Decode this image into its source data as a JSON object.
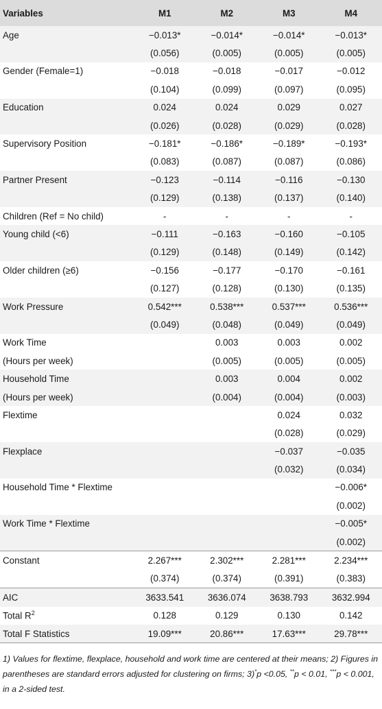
{
  "table": {
    "headers": [
      "Variables",
      "M1",
      "M2",
      "M3",
      "M4"
    ],
    "rows": [
      {
        "label": "Age",
        "cells": [
          "−0.013*",
          "−0.014*",
          "−0.014*",
          "−0.013*"
        ],
        "stripe": true
      },
      {
        "label": "",
        "cells": [
          "(0.056)",
          "(0.005)",
          "(0.005)",
          "(0.005)"
        ],
        "stripe": true
      },
      {
        "label": "Gender (Female=1)",
        "cells": [
          "−0.018",
          "−0.018",
          "−0.017",
          "−0.012"
        ],
        "stripe": false
      },
      {
        "label": "",
        "cells": [
          "(0.104)",
          "(0.099)",
          "(0.097)",
          "(0.095)"
        ],
        "stripe": false
      },
      {
        "label": "Education",
        "cells": [
          "0.024",
          "0.024",
          "0.029",
          "0.027"
        ],
        "stripe": true
      },
      {
        "label": "",
        "cells": [
          "(0.026)",
          "(0.028)",
          "(0.029)",
          "(0.028)"
        ],
        "stripe": true
      },
      {
        "label": "Supervisory Position",
        "cells": [
          "−0.181*",
          "−0.186*",
          "−0.189*",
          "−0.193*"
        ],
        "stripe": false
      },
      {
        "label": "",
        "cells": [
          "(0.083)",
          "(0.087)",
          "(0.087)",
          "(0.086)"
        ],
        "stripe": false
      },
      {
        "label": "Partner Present",
        "cells": [
          "−0.123",
          "−0.114",
          "−0.116",
          "−0.130"
        ],
        "stripe": true
      },
      {
        "label": "",
        "cells": [
          "(0.129)",
          "(0.138)",
          "(0.137)",
          "(0.140)"
        ],
        "stripe": true
      },
      {
        "label": "Children (Ref = No child)",
        "cells": [
          "-",
          "-",
          "-",
          "-"
        ],
        "stripe": false
      },
      {
        "label": "Young child (<6)",
        "cells": [
          "−0.111",
          "−0.163",
          "−0.160",
          "−0.105"
        ],
        "stripe": true
      },
      {
        "label": "",
        "cells": [
          "(0.129)",
          "(0.148)",
          "(0.149)",
          "(0.142)"
        ],
        "stripe": true
      },
      {
        "label": "Older children (≥6)",
        "cells": [
          "−0.156",
          "−0.177",
          "−0.170",
          "−0.161"
        ],
        "stripe": false
      },
      {
        "label": "",
        "cells": [
          "(0.127)",
          "(0.128)",
          "(0.130)",
          "(0.135)"
        ],
        "stripe": false
      },
      {
        "label": "Work Pressure",
        "cells": [
          "0.542***",
          "0.538***",
          "0.537***",
          "0.536***"
        ],
        "stripe": true
      },
      {
        "label": "",
        "cells": [
          "(0.049)",
          "(0.048)",
          "(0.049)",
          "(0.049)"
        ],
        "stripe": true
      },
      {
        "label": "Work Time",
        "cells": [
          "",
          "0.003",
          "0.003",
          "0.002"
        ],
        "stripe": false
      },
      {
        "label": "(Hours per week)",
        "cells": [
          "",
          "(0.005)",
          "(0.005)",
          "(0.005)"
        ],
        "stripe": false
      },
      {
        "label": "Household Time",
        "cells": [
          "",
          "0.003",
          "0.004",
          "0.002"
        ],
        "stripe": true
      },
      {
        "label": "(Hours per week)",
        "cells": [
          "",
          "(0.004)",
          "(0.004)",
          "(0.003)"
        ],
        "stripe": true
      },
      {
        "label": "Flextime",
        "cells": [
          "",
          "",
          "0.024",
          "0.032"
        ],
        "stripe": false
      },
      {
        "label": "",
        "cells": [
          "",
          "",
          "(0.028)",
          "(0.029)"
        ],
        "stripe": false
      },
      {
        "label": "Flexplace",
        "cells": [
          "",
          "",
          "−0.037",
          "−0.035"
        ],
        "stripe": true
      },
      {
        "label": "",
        "cells": [
          "",
          "",
          "(0.032)",
          "(0.034)"
        ],
        "stripe": true
      },
      {
        "label": "Household Time * Flextime",
        "cells": [
          "",
          "",
          "",
          "−0.006*"
        ],
        "stripe": false
      },
      {
        "label": "",
        "cells": [
          "",
          "",
          "",
          "(0.002)"
        ],
        "stripe": false
      },
      {
        "label": "Work Time * Flextime",
        "cells": [
          "",
          "",
          "",
          "−0.005*"
        ],
        "stripe": true
      },
      {
        "label": "",
        "cells": [
          "",
          "",
          "",
          "(0.002)"
        ],
        "stripe": true
      },
      {
        "label": "Constant",
        "cells": [
          "2.267***",
          "2.302***",
          "2.281***",
          "2.234***"
        ],
        "stripe": false,
        "sep": true
      },
      {
        "label": "",
        "cells": [
          "(0.374)",
          "(0.374)",
          "(0.391)",
          "(0.383)"
        ],
        "stripe": false
      },
      {
        "label": "AIC",
        "cells": [
          "3633.541",
          "3636.074",
          "3638.793",
          "3632.994"
        ],
        "stripe": true,
        "sep": true
      },
      {
        "label": "Total R",
        "label_sup": "2",
        "cells": [
          "0.128",
          "0.129",
          "0.130",
          "0.142"
        ],
        "stripe": false
      },
      {
        "label": "Total F Statistics",
        "cells": [
          "19.09***",
          "20.86***",
          "17.63***",
          "29.78***"
        ],
        "stripe": true
      }
    ]
  },
  "notes": {
    "part1": "1) Values for flextime, flexplace, household and work time are centered at their means; 2) Figures in parentheses are standard errors adjusted for clustering on firms; 3)",
    "sup1": "*",
    "part2": "p <0.05, ",
    "sup2": "**",
    "part3": "p < 0.01, ",
    "sup3": "***",
    "part4": "p < 0.001, in a 2-sided test."
  }
}
